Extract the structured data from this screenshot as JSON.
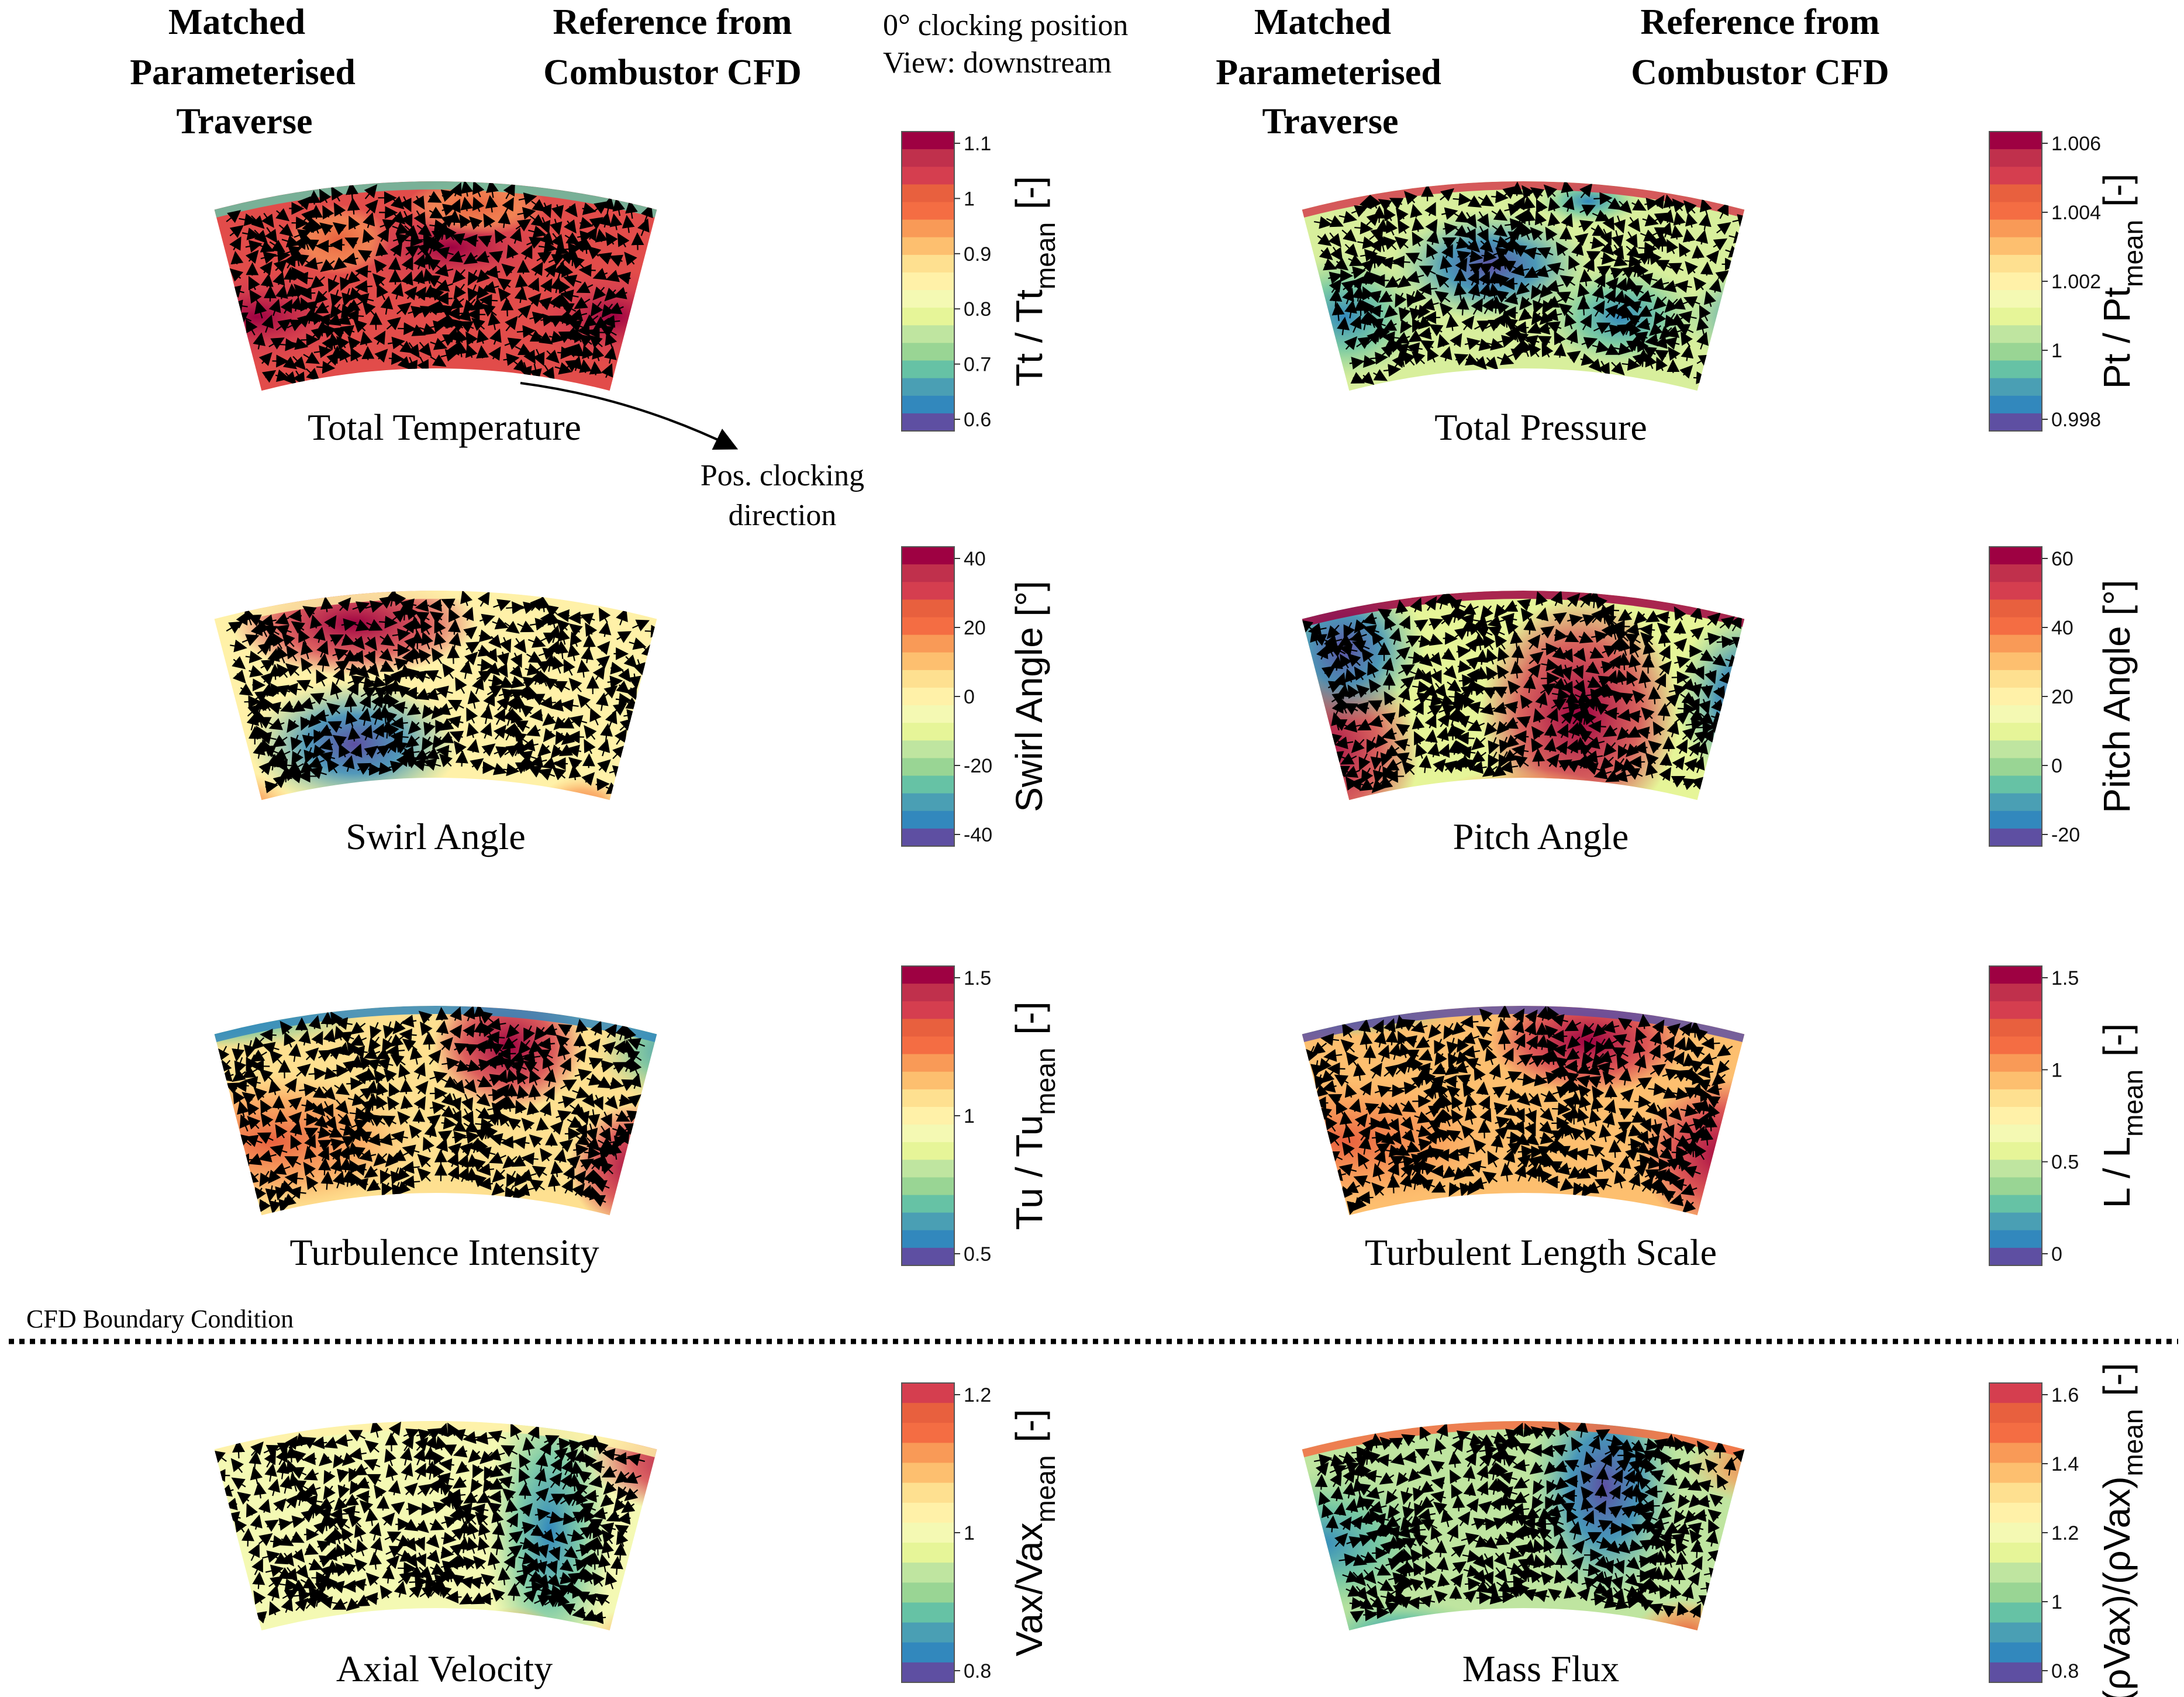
{
  "headers": {
    "left_matched": [
      "Matched",
      "Parameterised",
      "Traverse"
    ],
    "left_reference": [
      "Reference from",
      "Combustor CFD"
    ],
    "right_matched": [
      "Matched",
      "Parameterised",
      "Traverse"
    ],
    "right_reference": [
      "Reference from",
      "Combustor CFD"
    ]
  },
  "view_note": [
    "0° clocking position",
    "View: downstream"
  ],
  "clocking_note": [
    "Pos. clocking",
    "direction"
  ],
  "boundary_label": "CFD Boundary Condition",
  "panels": [
    {
      "id": "tt",
      "title": "Total Temperature",
      "colorbar": {
        "label_main": "Tt / Tt",
        "label_sub": "mean",
        "label_unit": "[-]",
        "ticks": [
          "1.1",
          "1",
          "0.9",
          "0.8",
          "0.7",
          "0.6"
        ],
        "colors": [
          "#9e0142",
          "#c0304c",
          "#d53e4f",
          "#e8603e",
          "#f46d43",
          "#f99a57",
          "#fdbf6f",
          "#fee090",
          "#fff1a8",
          "#f4f9b3",
          "#e6f598",
          "#bfe5a0",
          "#99d594",
          "#66c2a5",
          "#4a9fb4",
          "#3288bd",
          "#5e4fa2"
        ]
      }
    },
    {
      "id": "pt",
      "title": "Total Pressure",
      "colorbar": {
        "label_main": "Pt / Pt",
        "label_sub": "mean",
        "label_unit": "[-]",
        "ticks": [
          "1.006",
          "1.004",
          "1.002",
          "1",
          "0.998"
        ],
        "colors": [
          "#9e0142",
          "#c0304c",
          "#d53e4f",
          "#e8603e",
          "#f46d43",
          "#f99a57",
          "#fdbf6f",
          "#fee090",
          "#fff1a8",
          "#f4f9b3",
          "#e6f598",
          "#bfe5a0",
          "#99d594",
          "#66c2a5",
          "#4a9fb4",
          "#3288bd",
          "#5e4fa2"
        ]
      }
    },
    {
      "id": "swirl",
      "title": "Swirl Angle",
      "colorbar": {
        "label_main": "Swirl Angle [°]",
        "label_sub": "",
        "label_unit": "",
        "ticks": [
          "40",
          "20",
          "0",
          "-20",
          "-40"
        ],
        "colors": [
          "#9e0142",
          "#c0304c",
          "#d53e4f",
          "#e8603e",
          "#f46d43",
          "#f99a57",
          "#fdbf6f",
          "#fee090",
          "#fff1a8",
          "#f4f9b3",
          "#e6f598",
          "#bfe5a0",
          "#99d594",
          "#66c2a5",
          "#4a9fb4",
          "#3288bd",
          "#5e4fa2"
        ]
      }
    },
    {
      "id": "pitch",
      "title": "Pitch Angle",
      "colorbar": {
        "label_main": "Pitch Angle [°]",
        "label_sub": "",
        "label_unit": "",
        "ticks": [
          "60",
          "40",
          "20",
          "0",
          "-20"
        ],
        "colors": [
          "#9e0142",
          "#c0304c",
          "#d53e4f",
          "#e8603e",
          "#f46d43",
          "#f99a57",
          "#fdbf6f",
          "#fee090",
          "#fff1a8",
          "#f4f9b3",
          "#e6f598",
          "#bfe5a0",
          "#99d594",
          "#66c2a5",
          "#4a9fb4",
          "#3288bd",
          "#5e4fa2"
        ]
      }
    },
    {
      "id": "tu",
      "title": "Turbulence Intensity",
      "colorbar": {
        "label_main": "Tu / Tu",
        "label_sub": "mean",
        "label_unit": "[-]",
        "ticks": [
          "1.5",
          "1",
          "0.5"
        ],
        "colors": [
          "#9e0142",
          "#c0304c",
          "#d53e4f",
          "#e8603e",
          "#f46d43",
          "#f99a57",
          "#fdbf6f",
          "#fee090",
          "#fff1a8",
          "#f4f9b3",
          "#e6f598",
          "#bfe5a0",
          "#99d594",
          "#66c2a5",
          "#4a9fb4",
          "#3288bd",
          "#5e4fa2"
        ]
      }
    },
    {
      "id": "ls",
      "title": "Turbulent Length Scale",
      "colorbar": {
        "label_main": "L / L",
        "label_sub": "mean",
        "label_unit": "[-]",
        "ticks": [
          "1.5",
          "1",
          "0.5",
          "0"
        ],
        "colors": [
          "#9e0142",
          "#c0304c",
          "#d53e4f",
          "#e8603e",
          "#f46d43",
          "#f99a57",
          "#fdbf6f",
          "#fee090",
          "#fff1a8",
          "#f4f9b3",
          "#e6f598",
          "#bfe5a0",
          "#99d594",
          "#66c2a5",
          "#4a9fb4",
          "#3288bd",
          "#5e4fa2"
        ]
      }
    },
    {
      "id": "vax",
      "title": "Axial Velocity",
      "colorbar": {
        "label_main": "Vax/Vax",
        "label_sub": "mean",
        "label_unit": "[-]",
        "ticks": [
          "1.2",
          "1",
          "0.8"
        ],
        "colors": [
          "#d53e4f",
          "#e8603e",
          "#f46d43",
          "#f99a57",
          "#fdbf6f",
          "#fee090",
          "#fff1a8",
          "#f4f9b3",
          "#e6f598",
          "#bfe5a0",
          "#99d594",
          "#66c2a5",
          "#4a9fb4",
          "#3288bd",
          "#5e4fa2"
        ]
      }
    },
    {
      "id": "mf",
      "title": "Mass Flux",
      "colorbar": {
        "label_main": "(ρVax)/(ρVax)",
        "label_sub": "mean",
        "label_unit": "[-]",
        "ticks": [
          "1.6",
          "1.4",
          "1.2",
          "1",
          "0.8"
        ],
        "colors": [
          "#d53e4f",
          "#e8603e",
          "#f46d43",
          "#f99a57",
          "#fdbf6f",
          "#fee090",
          "#fff1a8",
          "#f4f9b3",
          "#e6f598",
          "#bfe5a0",
          "#99d594",
          "#66c2a5",
          "#4a9fb4",
          "#3288bd",
          "#5e4fa2"
        ]
      }
    }
  ]
}
